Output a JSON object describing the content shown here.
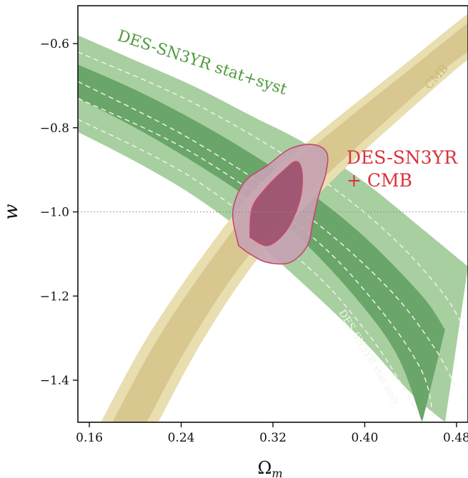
{
  "chart_data": {
    "type": "contour",
    "xlabel": "Ω",
    "xlabel_sub": "m",
    "ylabel": "w",
    "xlim": [
      0.15,
      0.49
    ],
    "ylim": [
      -1.5,
      -0.51
    ],
    "x_ticks": [
      0.16,
      0.24,
      0.32,
      0.4,
      0.48
    ],
    "x_tick_labels": [
      "0.16",
      "0.24",
      "0.32",
      "0.40",
      "0.48"
    ],
    "y_ticks": [
      -0.6,
      -0.8,
      -1.0,
      -1.2,
      -1.4
    ],
    "y_tick_labels": [
      "−0.6",
      "−0.8",
      "−1.0",
      "−1.2",
      "−1.4"
    ],
    "reference_line": {
      "w": -1.0,
      "style": "dotted"
    },
    "colors": {
      "sn_outer": "#a8cfa0",
      "sn_inner": "#6aa56a",
      "sn_label": "#4f9a3e",
      "cmb_outer": "#e8deb0",
      "cmb_inner": "#d8c78e",
      "cmb_label": "#cbb87a",
      "combined_outer": "#c6a3b2",
      "combined_inner": "#9b4f6e",
      "combined_edge": "#c24a6a",
      "combined_label": "#d8323a"
    },
    "series": [
      {
        "name": "DES-SN3YR stat+syst",
        "contours": {
          "outer_upper": [
            [
              0.15,
              -0.58
            ],
            [
              0.2,
              -0.64
            ],
            [
              0.25,
              -0.7
            ],
            [
              0.3,
              -0.77
            ],
            [
              0.35,
              -0.84
            ],
            [
              0.4,
              -0.93
            ],
            [
              0.45,
              -1.04
            ],
            [
              0.49,
              -1.13
            ]
          ],
          "outer_lower": [
            [
              0.15,
              -0.81
            ],
            [
              0.2,
              -0.88
            ],
            [
              0.25,
              -0.96
            ],
            [
              0.3,
              -1.06
            ],
            [
              0.35,
              -1.18
            ],
            [
              0.4,
              -1.31
            ],
            [
              0.44,
              -1.43
            ],
            [
              0.47,
              -1.5
            ]
          ],
          "inner_upper": [
            [
              0.15,
              -0.65
            ],
            [
              0.2,
              -0.71
            ],
            [
              0.25,
              -0.78
            ],
            [
              0.3,
              -0.86
            ],
            [
              0.35,
              -0.95
            ],
            [
              0.4,
              -1.06
            ],
            [
              0.45,
              -1.2
            ],
            [
              0.47,
              -1.28
            ]
          ],
          "inner_lower": [
            [
              0.15,
              -0.73
            ],
            [
              0.2,
              -0.8
            ],
            [
              0.25,
              -0.88
            ],
            [
              0.3,
              -0.97
            ],
            [
              0.35,
              -1.08
            ],
            [
              0.4,
              -1.23
            ],
            [
              0.43,
              -1.35
            ],
            [
              0.45,
              -1.5
            ]
          ]
        }
      },
      {
        "name": "DES-SN3YR stat only",
        "contours": {
          "dashed_1": [
            [
              0.15,
              -0.62
            ],
            [
              0.25,
              -0.74
            ],
            [
              0.35,
              -0.9
            ],
            [
              0.42,
              -1.05
            ],
            [
              0.47,
              -1.2
            ],
            [
              0.49,
              -1.3
            ]
          ],
          "dashed_2": [
            [
              0.15,
              -0.69
            ],
            [
              0.25,
              -0.83
            ],
            [
              0.35,
              -1.01
            ],
            [
              0.42,
              -1.18
            ],
            [
              0.46,
              -1.32
            ],
            [
              0.48,
              -1.42
            ]
          ],
          "dashed_3": [
            [
              0.15,
              -0.73
            ],
            [
              0.25,
              -0.86
            ],
            [
              0.35,
              -1.05
            ],
            [
              0.41,
              -1.22
            ],
            [
              0.45,
              -1.38
            ],
            [
              0.46,
              -1.5
            ]
          ],
          "dashed_4": [
            [
              0.15,
              -0.78
            ],
            [
              0.25,
              -0.92
            ],
            [
              0.35,
              -1.13
            ],
            [
              0.4,
              -1.28
            ],
            [
              0.43,
              -1.4
            ],
            [
              0.45,
              -1.5
            ]
          ]
        }
      },
      {
        "name": "CMB",
        "contours": {
          "outer_left": [
            [
              0.17,
              -1.5
            ],
            [
              0.21,
              -1.3
            ],
            [
              0.26,
              -1.1
            ],
            [
              0.31,
              -0.93
            ],
            [
              0.37,
              -0.79
            ],
            [
              0.43,
              -0.66
            ],
            [
              0.48,
              -0.55
            ],
            [
              0.49,
              -0.53
            ]
          ],
          "inner_left": [
            [
              0.18,
              -1.5
            ],
            [
              0.22,
              -1.3
            ],
            [
              0.27,
              -1.1
            ],
            [
              0.32,
              -0.93
            ],
            [
              0.38,
              -0.79
            ],
            [
              0.44,
              -0.66
            ],
            [
              0.49,
              -0.55
            ]
          ],
          "inner_right": [
            [
              0.21,
              -1.5
            ],
            [
              0.25,
              -1.3
            ],
            [
              0.3,
              -1.1
            ],
            [
              0.36,
              -0.93
            ],
            [
              0.42,
              -0.78
            ],
            [
              0.47,
              -0.66
            ],
            [
              0.49,
              -0.62
            ]
          ],
          "outer_right": [
            [
              0.22,
              -1.5
            ],
            [
              0.26,
              -1.3
            ],
            [
              0.31,
              -1.1
            ],
            [
              0.37,
              -0.93
            ],
            [
              0.43,
              -0.78
            ],
            [
              0.48,
              -0.66
            ],
            [
              0.49,
              -0.64
            ]
          ]
        }
      },
      {
        "name": "DES-SN3YR + CMB",
        "contours": {
          "outer": [
            [
              0.29,
              -1.08
            ],
            [
              0.285,
              -1.0
            ],
            [
              0.295,
              -0.93
            ],
            [
              0.315,
              -0.89
            ],
            [
              0.335,
              -0.85
            ],
            [
              0.355,
              -0.84
            ],
            [
              0.367,
              -0.86
            ],
            [
              0.366,
              -0.91
            ],
            [
              0.36,
              -0.96
            ],
            [
              0.355,
              -1.02
            ],
            [
              0.35,
              -1.08
            ],
            [
              0.335,
              -1.12
            ],
            [
              0.315,
              -1.12
            ],
            [
              0.3,
              -1.1
            ],
            [
              0.29,
              -1.08
            ]
          ],
          "inner": [
            [
              0.3,
              -1.06
            ],
            [
              0.302,
              -0.99
            ],
            [
              0.315,
              -0.94
            ],
            [
              0.33,
              -0.9
            ],
            [
              0.34,
              -0.88
            ],
            [
              0.345,
              -0.9
            ],
            [
              0.345,
              -0.95
            ],
            [
              0.34,
              -1.0
            ],
            [
              0.33,
              -1.05
            ],
            [
              0.315,
              -1.08
            ],
            [
              0.3,
              -1.06
            ]
          ]
        }
      }
    ]
  },
  "annotations": {
    "sn_stat_syst": "DES-SN3YR stat+syst",
    "sn_stat_only": "DES-SN3YR stat only",
    "cmb": "CMB",
    "combined_line1": "DES-SN3YR",
    "combined_line2": "+ CMB"
  }
}
